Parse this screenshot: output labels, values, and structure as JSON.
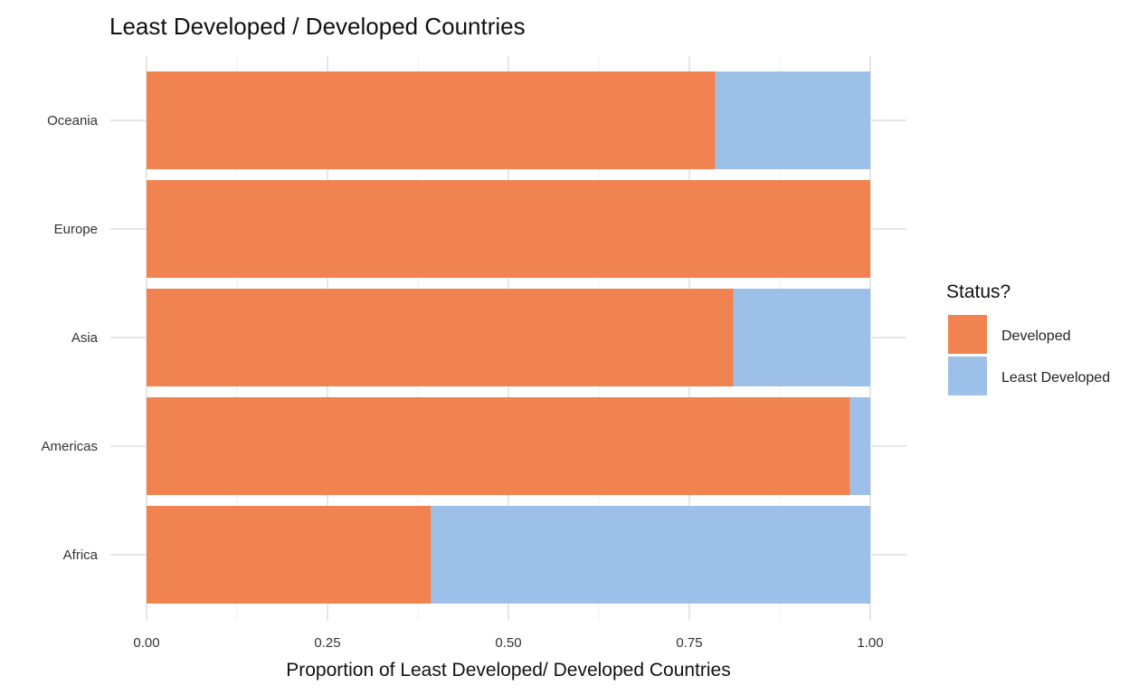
{
  "chart_data": {
    "type": "bar",
    "orientation": "horizontal",
    "stacked": true,
    "title": "Least Developed / Developed Countries",
    "xlabel": "Proportion of Least Developed/ Developed Countries",
    "ylabel": "",
    "xlim": [
      0,
      1
    ],
    "x_ticks": [
      "0.00",
      "0.25",
      "0.50",
      "0.75",
      "1.00"
    ],
    "x_tick_values": [
      0,
      0.25,
      0.5,
      0.75,
      1.0
    ],
    "grid": true,
    "legend_position": "right",
    "legend_title": "Status?",
    "categories": [
      "Oceania",
      "Europe",
      "Asia",
      "Americas",
      "Africa"
    ],
    "series": [
      {
        "name": "Developed",
        "color": "#f0834f",
        "values": [
          0.786,
          1.0,
          0.811,
          0.972,
          0.393
        ]
      },
      {
        "name": "Least Developed",
        "color": "#9cc0e7",
        "values": [
          0.214,
          0.0,
          0.189,
          0.028,
          0.607
        ]
      }
    ]
  }
}
